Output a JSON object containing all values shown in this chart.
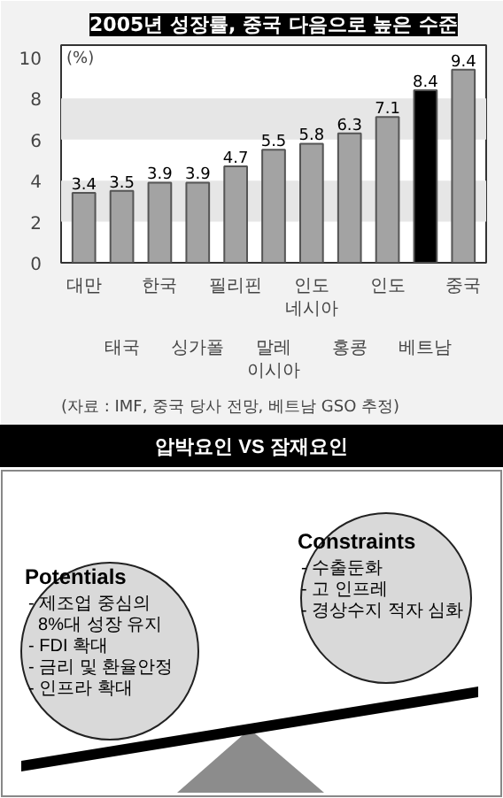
{
  "chart_data": [
    {
      "type": "bar",
      "title": "2005년 성장률, 중국 다음으로 높은 수준",
      "categories": [
        "대만",
        "태국",
        "한국",
        "싱가폴",
        "필리핀",
        "말레\n이시아",
        "인도\n네시아",
        "홍콩",
        "인도",
        "베트남",
        "중국"
      ],
      "values": [
        3.4,
        3.5,
        3.9,
        3.9,
        4.7,
        5.5,
        5.8,
        6.3,
        7.1,
        8.4,
        9.4
      ],
      "colors": [
        "#a3a3a3",
        "#a3a3a3",
        "#a3a3a3",
        "#a3a3a3",
        "#a3a3a3",
        "#a3a3a3",
        "#a3a3a3",
        "#a3a3a3",
        "#a3a3a3",
        "#000000",
        "#a3a3a3"
      ],
      "ylabel": "(%)",
      "ylim": [
        0,
        10.6
      ],
      "yticks": [
        0,
        2,
        4,
        6,
        8,
        10
      ],
      "data_labels": true,
      "bands": [
        {
          "axis": "y",
          "from": 2,
          "to": 4,
          "color": "#e6e6e6"
        },
        {
          "axis": "y",
          "from": 6,
          "to": 8,
          "color": "#e6e6e6"
        }
      ],
      "annotations": [
        "(자료 : IMF, 중국 당사 전망, 베트남 GSO 추정)"
      ]
    },
    {
      "type": "other",
      "title": "압박요인 VS 잠재요인",
      "annotations": [
        "Potentials\n- 제조업 중심의\n  8%대 성장 유지\n- FDI 확대\n- 금리 및 환율안정\n- 인프라 확대",
        "Constraints\n- 수출둔화\n- 고 인프레\n- 경상수지 적자 심화"
      ]
    }
  ]
}
